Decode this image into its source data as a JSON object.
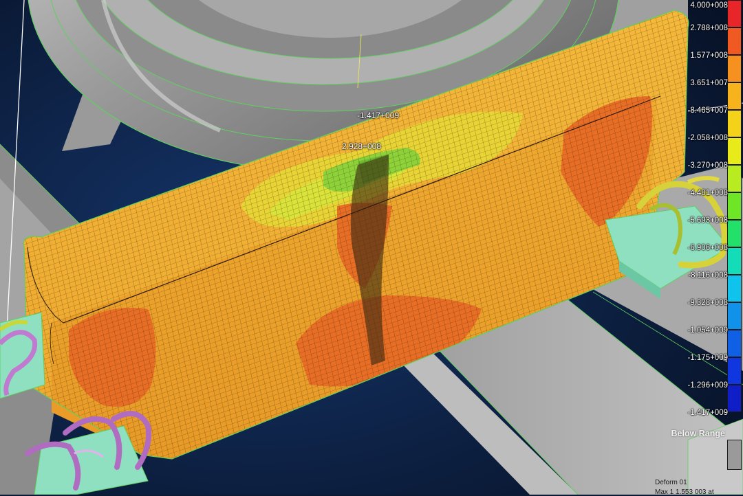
{
  "viewport": {
    "probe_labels": [
      "-1.417+009",
      "2.928+008"
    ]
  },
  "legend": {
    "labels": [
      "4.000+008",
      "2.788+008",
      "1.577+008",
      "3.651+007",
      "-8.465+007",
      "-2.058+008",
      "-3.270+008",
      "-4.481+008",
      "-5.693+008",
      "-6.906+008",
      "-8.116+008",
      "-9.328+008",
      "-1.054+009",
      "-1.175+009",
      "-1.296+009",
      "-1.417+009"
    ],
    "colors": [
      "#e8262a",
      "#f05a22",
      "#f6901e",
      "#f7b31b",
      "#f4d21a",
      "#e9ea1a",
      "#b9ec20",
      "#6ee626",
      "#22e06a",
      "#13dcb8",
      "#10c3ec",
      "#1092ea",
      "#1060e6",
      "#1036e0",
      "#101ec8"
    ],
    "below_range_label": "Below Range",
    "below_range_color": "#9a9a9a",
    "deform_label": "Deform 01",
    "max_label": "Max 1 1.553 003 at"
  },
  "scene_colors": {
    "background": "#0b1a34",
    "rail": "#f2ad32",
    "hot_zone": "#e86d25",
    "warm_zone": "#e8d435",
    "contact_zone": "#8ed23a",
    "wheel": "#9c9c9c",
    "sleeper": "#a6a6a6",
    "mesh_line": "#3a2a10",
    "clip_purple": "#b06cc0",
    "clip_yellow": "#c8d83a"
  }
}
